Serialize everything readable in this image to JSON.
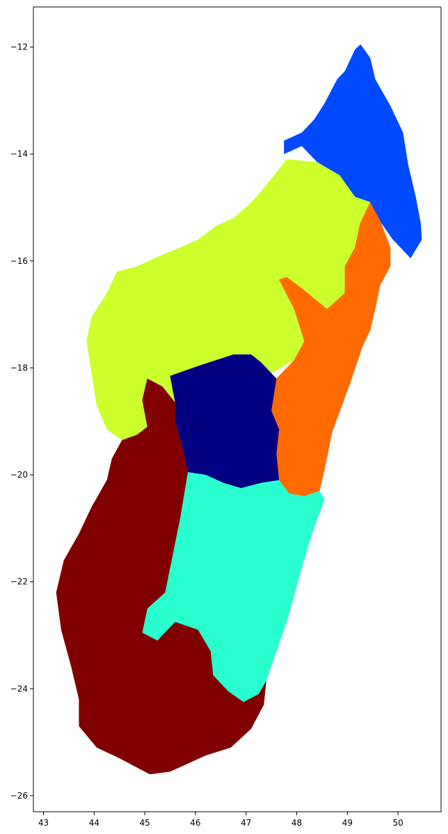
{
  "chart_data": {
    "type": "choropleth",
    "title": "",
    "xlabel": "",
    "ylabel": "",
    "xlim": [
      42.8,
      50.85
    ],
    "ylim": [
      -26.3,
      -11.25
    ],
    "grid": false,
    "legend": "none",
    "x_ticks": [
      "43",
      "44",
      "45",
      "46",
      "47",
      "48",
      "49",
      "50"
    ],
    "y_ticks": [
      "−12",
      "−14",
      "−16",
      "−18",
      "−20",
      "−22",
      "−24",
      "−26"
    ],
    "x_tick_values": [
      43,
      44,
      45,
      46,
      47,
      48,
      49,
      50
    ],
    "y_tick_values": [
      -12,
      -14,
      -16,
      -18,
      -20,
      -22,
      -24,
      -26
    ],
    "colormap": "jet",
    "region_groups": [
      {
        "id": "north",
        "color": "#0049ff",
        "outline": [
          [
            49.26,
            -11.95
          ],
          [
            49.45,
            -12.2
          ],
          [
            49.55,
            -12.6
          ],
          [
            49.85,
            -13.1
          ],
          [
            50.1,
            -13.6
          ],
          [
            50.2,
            -14.2
          ],
          [
            50.35,
            -14.8
          ],
          [
            50.45,
            -15.3
          ],
          [
            50.47,
            -15.6
          ],
          [
            50.25,
            -15.95
          ],
          [
            49.9,
            -15.6
          ],
          [
            49.6,
            -15.2
          ],
          [
            49.45,
            -14.9
          ],
          [
            49.15,
            -14.8
          ],
          [
            48.85,
            -14.4
          ],
          [
            48.4,
            -14.15
          ],
          [
            48.1,
            -13.85
          ],
          [
            47.75,
            -14.0
          ],
          [
            47.75,
            -13.75
          ],
          [
            48.1,
            -13.6
          ],
          [
            48.35,
            -13.35
          ],
          [
            48.55,
            -13.05
          ],
          [
            48.8,
            -12.6
          ],
          [
            48.95,
            -12.45
          ],
          [
            49.15,
            -12.05
          ]
        ]
      },
      {
        "id": "northwest",
        "color": "#ccff2b",
        "outline": [
          [
            48.4,
            -14.15
          ],
          [
            48.85,
            -14.4
          ],
          [
            49.15,
            -14.8
          ],
          [
            49.45,
            -14.9
          ],
          [
            49.25,
            -15.3
          ],
          [
            49.15,
            -15.75
          ],
          [
            48.95,
            -16.1
          ],
          [
            48.95,
            -16.6
          ],
          [
            48.6,
            -16.9
          ],
          [
            48.15,
            -16.55
          ],
          [
            47.8,
            -16.3
          ],
          [
            47.65,
            -16.35
          ],
          [
            47.95,
            -16.9
          ],
          [
            48.15,
            -17.5
          ],
          [
            47.95,
            -17.85
          ],
          [
            47.5,
            -18.1
          ],
          [
            47.3,
            -17.9
          ],
          [
            47.1,
            -17.75
          ],
          [
            46.75,
            -17.75
          ],
          [
            46.1,
            -17.95
          ],
          [
            45.5,
            -18.15
          ],
          [
            45.6,
            -18.65
          ],
          [
            45.35,
            -19.0
          ],
          [
            45.05,
            -19.1
          ],
          [
            44.85,
            -19.25
          ],
          [
            44.55,
            -19.35
          ],
          [
            44.25,
            -19.15
          ],
          [
            44.05,
            -18.7
          ],
          [
            43.95,
            -18.1
          ],
          [
            43.85,
            -17.5
          ],
          [
            43.95,
            -17.05
          ],
          [
            44.25,
            -16.6
          ],
          [
            44.45,
            -16.2
          ],
          [
            44.85,
            -16.1
          ],
          [
            45.3,
            -15.9
          ],
          [
            45.7,
            -15.75
          ],
          [
            46.05,
            -15.6
          ],
          [
            46.4,
            -15.35
          ],
          [
            46.75,
            -15.2
          ],
          [
            47.05,
            -14.95
          ],
          [
            47.25,
            -14.75
          ],
          [
            47.55,
            -14.4
          ],
          [
            47.8,
            -14.1
          ]
        ]
      },
      {
        "id": "east",
        "color": "#ff6b00",
        "outline": [
          [
            49.45,
            -14.9
          ],
          [
            49.65,
            -15.25
          ],
          [
            49.85,
            -15.75
          ],
          [
            49.85,
            -16.1
          ],
          [
            49.65,
            -16.45
          ],
          [
            49.55,
            -16.9
          ],
          [
            49.45,
            -17.3
          ],
          [
            49.3,
            -17.6
          ],
          [
            49.05,
            -18.3
          ],
          [
            48.7,
            -19.2
          ],
          [
            48.55,
            -19.9
          ],
          [
            48.45,
            -20.3
          ],
          [
            48.15,
            -20.4
          ],
          [
            47.85,
            -20.35
          ],
          [
            47.65,
            -20.1
          ],
          [
            47.6,
            -19.6
          ],
          [
            47.65,
            -19.15
          ],
          [
            47.5,
            -18.8
          ],
          [
            47.6,
            -18.2
          ],
          [
            47.95,
            -17.85
          ],
          [
            48.15,
            -17.5
          ],
          [
            47.95,
            -16.9
          ],
          [
            47.65,
            -16.35
          ],
          [
            47.8,
            -16.3
          ],
          [
            48.15,
            -16.55
          ],
          [
            48.6,
            -16.9
          ],
          [
            48.95,
            -16.6
          ],
          [
            48.95,
            -16.1
          ],
          [
            49.15,
            -15.75
          ],
          [
            49.25,
            -15.3
          ]
        ]
      },
      {
        "id": "central",
        "color": "#000080",
        "outline": [
          [
            45.5,
            -18.15
          ],
          [
            46.1,
            -17.95
          ],
          [
            46.75,
            -17.75
          ],
          [
            47.1,
            -17.75
          ],
          [
            47.3,
            -17.9
          ],
          [
            47.5,
            -18.1
          ],
          [
            47.6,
            -18.2
          ],
          [
            47.5,
            -18.8
          ],
          [
            47.65,
            -19.15
          ],
          [
            47.6,
            -19.6
          ],
          [
            47.65,
            -20.1
          ],
          [
            47.3,
            -20.15
          ],
          [
            46.9,
            -20.25
          ],
          [
            46.55,
            -20.15
          ],
          [
            46.2,
            -20.0
          ],
          [
            45.85,
            -19.95
          ],
          [
            45.75,
            -19.5
          ],
          [
            45.6,
            -19.0
          ],
          [
            45.6,
            -18.65
          ]
        ]
      },
      {
        "id": "southeast",
        "color": "#29ffce",
        "outline": [
          [
            45.85,
            -19.95
          ],
          [
            46.2,
            -20.0
          ],
          [
            46.55,
            -20.15
          ],
          [
            46.9,
            -20.25
          ],
          [
            47.3,
            -20.15
          ],
          [
            47.65,
            -20.1
          ],
          [
            47.85,
            -20.35
          ],
          [
            48.15,
            -20.4
          ],
          [
            48.45,
            -20.3
          ],
          [
            48.55,
            -20.45
          ],
          [
            48.3,
            -21.1
          ],
          [
            48.05,
            -21.9
          ],
          [
            47.85,
            -22.6
          ],
          [
            47.6,
            -23.3
          ],
          [
            47.4,
            -23.85
          ],
          [
            47.25,
            -24.1
          ],
          [
            46.95,
            -24.25
          ],
          [
            46.65,
            -24.05
          ],
          [
            46.35,
            -23.75
          ],
          [
            46.3,
            -23.3
          ],
          [
            46.05,
            -22.9
          ],
          [
            45.6,
            -22.75
          ],
          [
            45.35,
            -23.0
          ],
          [
            45.25,
            -23.1
          ],
          [
            44.95,
            -22.95
          ],
          [
            45.05,
            -22.5
          ],
          [
            45.4,
            -22.2
          ],
          [
            45.55,
            -21.5
          ],
          [
            45.7,
            -20.8
          ]
        ]
      },
      {
        "id": "southwest",
        "color": "#800000",
        "outline": [
          [
            45.05,
            -18.2
          ],
          [
            45.35,
            -18.35
          ],
          [
            45.6,
            -18.65
          ],
          [
            45.6,
            -19.0
          ],
          [
            45.75,
            -19.5
          ],
          [
            45.85,
            -19.95
          ],
          [
            45.7,
            -20.8
          ],
          [
            45.55,
            -21.5
          ],
          [
            45.4,
            -22.2
          ],
          [
            45.05,
            -22.5
          ],
          [
            44.95,
            -22.95
          ],
          [
            45.25,
            -23.1
          ],
          [
            45.35,
            -23.0
          ],
          [
            45.6,
            -22.75
          ],
          [
            46.05,
            -22.9
          ],
          [
            46.3,
            -23.3
          ],
          [
            46.35,
            -23.75
          ],
          [
            46.65,
            -24.05
          ],
          [
            46.95,
            -24.25
          ],
          [
            47.25,
            -24.1
          ],
          [
            47.4,
            -23.85
          ],
          [
            47.35,
            -24.3
          ],
          [
            47.1,
            -24.75
          ],
          [
            46.7,
            -25.1
          ],
          [
            46.2,
            -25.25
          ],
          [
            45.5,
            -25.55
          ],
          [
            45.1,
            -25.6
          ],
          [
            44.5,
            -25.3
          ],
          [
            44.05,
            -25.1
          ],
          [
            43.7,
            -24.7
          ],
          [
            43.7,
            -24.2
          ],
          [
            43.55,
            -23.6
          ],
          [
            43.35,
            -22.9
          ],
          [
            43.25,
            -22.2
          ],
          [
            43.4,
            -21.6
          ],
          [
            43.7,
            -21.1
          ],
          [
            43.95,
            -20.6
          ],
          [
            44.25,
            -20.1
          ],
          [
            44.35,
            -19.7
          ],
          [
            44.55,
            -19.35
          ],
          [
            44.85,
            -19.25
          ],
          [
            45.05,
            -19.1
          ],
          [
            44.95,
            -18.6
          ]
        ]
      }
    ]
  }
}
